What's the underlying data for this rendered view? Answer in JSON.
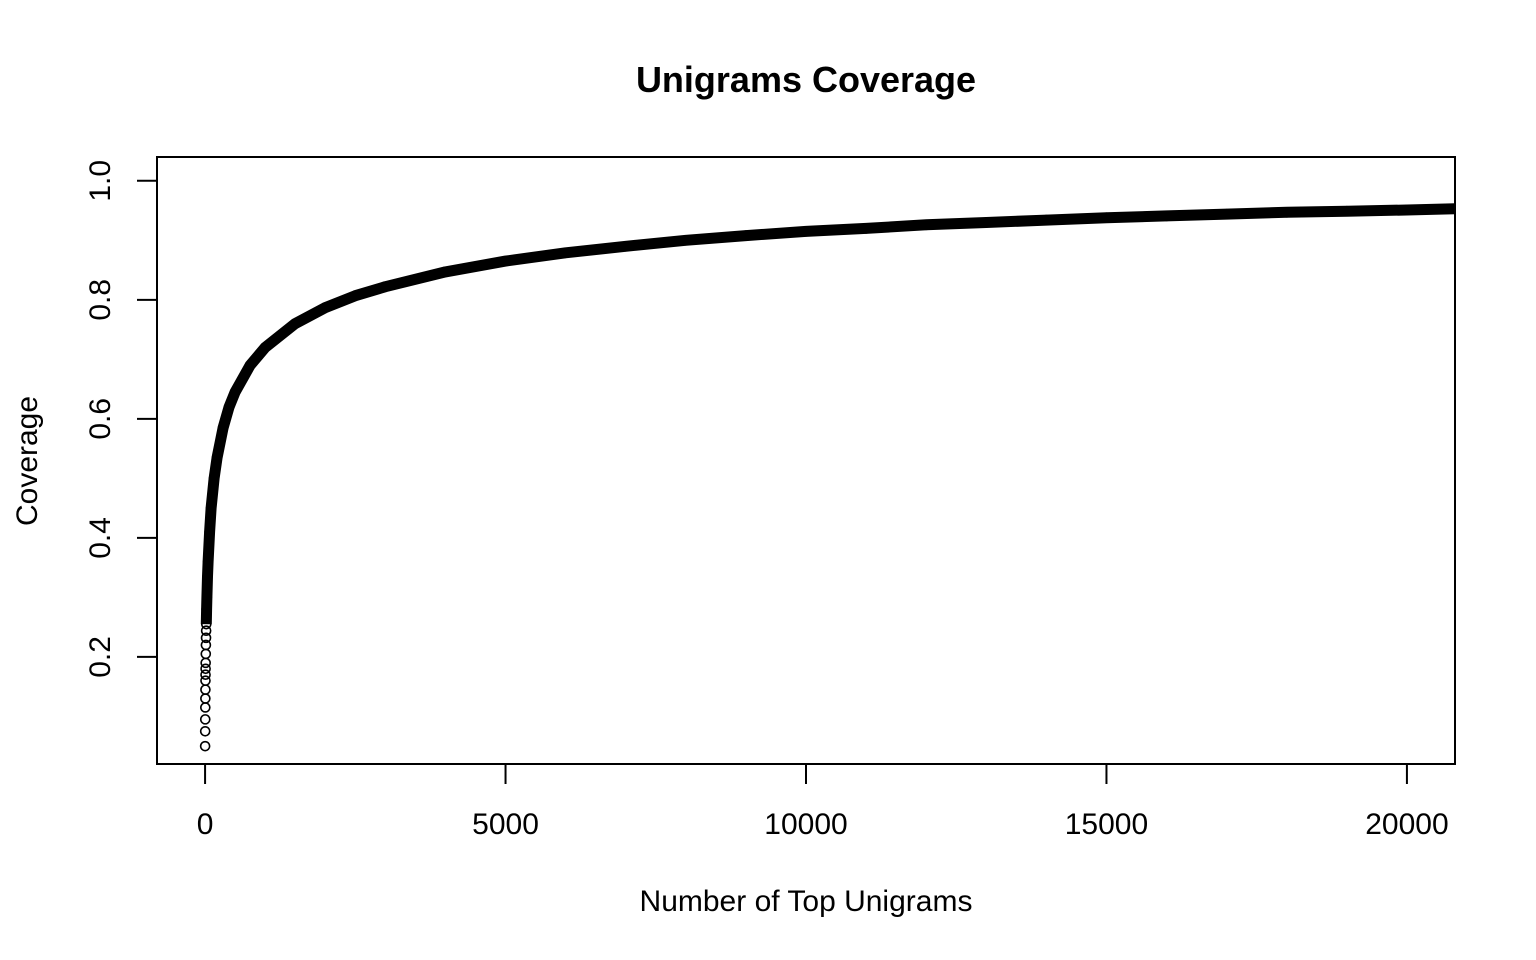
{
  "chart_data": {
    "type": "scatter",
    "title": "Unigrams Coverage",
    "xlabel": "Number of Top Unigrams",
    "ylabel": "Coverage",
    "xlim": [
      -800,
      20800
    ],
    "ylim": [
      0.02,
      1.04
    ],
    "x_ticks": [
      0,
      5000,
      10000,
      15000,
      20000
    ],
    "y_ticks": [
      0.2,
      0.4,
      0.6,
      0.8,
      1.0
    ],
    "x_tick_labels": [
      "0",
      "5000",
      "10000",
      "15000",
      "20000"
    ],
    "y_tick_labels": [
      "0.2",
      "0.4",
      "0.6",
      "0.8",
      "1.0"
    ],
    "grid": false,
    "marker": "open-circle",
    "colors": {
      "points": "#000000",
      "axes": "#000000"
    },
    "series": [
      {
        "points": [
          [
            1,
            0.05
          ],
          [
            2,
            0.075
          ],
          [
            3,
            0.095
          ],
          [
            4,
            0.115
          ],
          [
            5,
            0.13
          ],
          [
            6,
            0.145
          ],
          [
            7,
            0.16
          ],
          [
            8,
            0.17
          ],
          [
            9,
            0.18
          ],
          [
            10,
            0.19
          ],
          [
            12,
            0.205
          ],
          [
            14,
            0.22
          ],
          [
            16,
            0.232
          ],
          [
            18,
            0.244
          ],
          [
            20,
            0.255
          ],
          [
            25,
            0.28
          ],
          [
            30,
            0.3
          ],
          [
            40,
            0.335
          ],
          [
            50,
            0.36
          ],
          [
            75,
            0.41
          ],
          [
            100,
            0.45
          ],
          [
            150,
            0.5
          ],
          [
            200,
            0.535
          ],
          [
            300,
            0.585
          ],
          [
            400,
            0.62
          ],
          [
            500,
            0.645
          ],
          [
            750,
            0.69
          ],
          [
            1000,
            0.72
          ],
          [
            1500,
            0.76
          ],
          [
            2000,
            0.787
          ],
          [
            2500,
            0.807
          ],
          [
            3000,
            0.822
          ],
          [
            4000,
            0.847
          ],
          [
            5000,
            0.865
          ],
          [
            6000,
            0.879
          ],
          [
            7000,
            0.89
          ],
          [
            8000,
            0.9
          ],
          [
            9000,
            0.908
          ],
          [
            10000,
            0.915
          ],
          [
            11000,
            0.92
          ],
          [
            12000,
            0.926
          ],
          [
            13000,
            0.93
          ],
          [
            14000,
            0.934
          ],
          [
            15000,
            0.938
          ],
          [
            16000,
            0.941
          ],
          [
            17000,
            0.944
          ],
          [
            18000,
            0.947
          ],
          [
            19000,
            0.949
          ],
          [
            20000,
            0.951
          ],
          [
            20800,
            0.953
          ]
        ]
      }
    ]
  }
}
